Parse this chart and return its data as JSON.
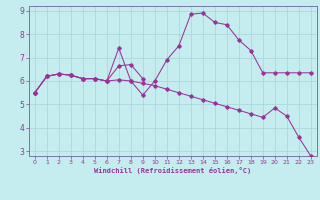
{
  "xlabel": "Windchill (Refroidissement éolien,°C)",
  "background_color": "#c5ecee",
  "grid_color": "#aad8da",
  "line_color": "#993399",
  "spine_color": "#7777aa",
  "xlim": [
    -0.5,
    23.5
  ],
  "ylim": [
    2.8,
    9.2
  ],
  "yticks": [
    3,
    4,
    5,
    6,
    7,
    8,
    9
  ],
  "xticks": [
    0,
    1,
    2,
    3,
    4,
    5,
    6,
    7,
    8,
    9,
    10,
    11,
    12,
    13,
    14,
    15,
    16,
    17,
    18,
    19,
    20,
    21,
    22,
    23
  ],
  "series1_x": [
    0,
    1,
    2,
    3,
    4,
    5,
    6,
    7,
    8,
    9,
    10,
    11,
    12,
    13,
    14,
    15,
    16,
    17,
    18,
    19,
    20,
    21,
    22,
    23
  ],
  "series1_y": [
    5.5,
    6.2,
    6.3,
    6.25,
    6.1,
    6.1,
    6.0,
    7.4,
    6.0,
    5.4,
    6.0,
    6.9,
    7.5,
    8.85,
    8.9,
    8.5,
    8.4,
    7.75,
    7.3,
    6.35,
    6.35,
    6.35,
    6.35,
    6.35
  ],
  "series2_x": [
    0,
    1,
    2,
    3,
    4,
    5,
    6,
    7,
    8,
    9,
    10,
    11,
    12,
    13,
    14,
    15,
    16,
    17,
    18,
    19,
    20,
    21,
    22,
    23
  ],
  "series2_y": [
    5.5,
    6.2,
    6.3,
    6.25,
    6.1,
    6.1,
    6.0,
    6.05,
    6.0,
    5.9,
    5.8,
    5.65,
    5.5,
    5.35,
    5.2,
    5.05,
    4.9,
    4.75,
    4.6,
    4.45,
    4.85,
    4.5,
    3.6,
    2.8
  ],
  "series3_x": [
    0,
    1,
    2,
    3,
    4,
    5,
    6,
    7,
    8,
    9
  ],
  "series3_y": [
    5.5,
    6.2,
    6.3,
    6.25,
    6.1,
    6.1,
    6.0,
    6.65,
    6.7,
    6.1
  ]
}
